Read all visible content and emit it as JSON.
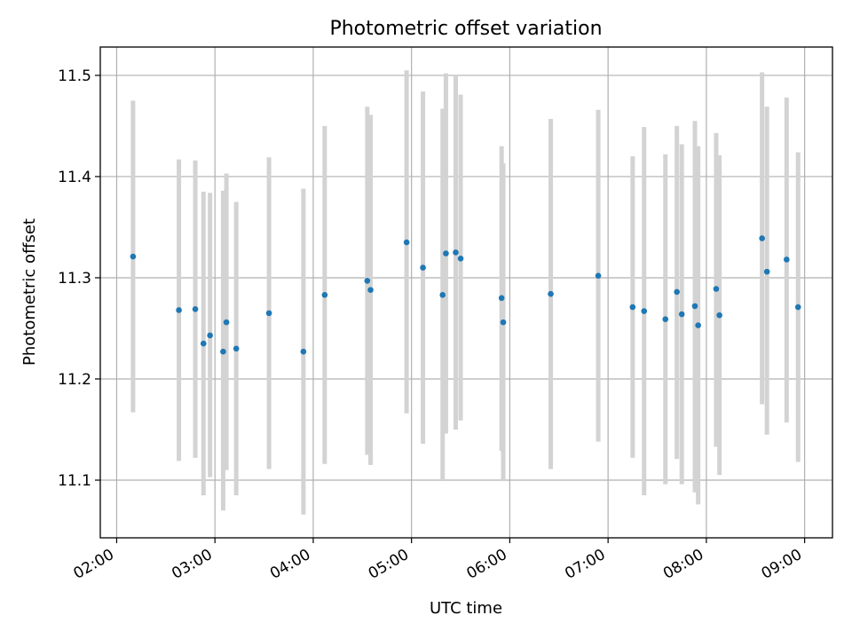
{
  "chart_data": {
    "type": "scatter",
    "title": "Photometric offset variation",
    "xlabel": "UTC time",
    "ylabel": "Photometric offset",
    "x_axis_type": "time",
    "xlim": [
      "01:50",
      "09:17"
    ],
    "ylim": [
      11.043,
      11.528
    ],
    "grid": true,
    "legend": "none",
    "x_ticks": [
      "02:00",
      "03:00",
      "04:00",
      "05:00",
      "06:00",
      "07:00",
      "08:00",
      "09:00"
    ],
    "y_ticks": [
      "11.1",
      "11.2",
      "11.3",
      "11.4",
      "11.5"
    ],
    "colors": {
      "point": "#1f77b4",
      "error_bar": "#d3d3d3"
    },
    "points": [
      {
        "t": "02:10",
        "y": 11.321,
        "lo": 11.167,
        "hi": 11.475
      },
      {
        "t": "02:38",
        "y": 11.268,
        "lo": 11.119,
        "hi": 11.417
      },
      {
        "t": "02:48",
        "y": 11.269,
        "lo": 11.122,
        "hi": 11.416
      },
      {
        "t": "02:53",
        "y": 11.235,
        "lo": 11.085,
        "hi": 11.385
      },
      {
        "t": "02:57",
        "y": 11.243,
        "lo": 11.103,
        "hi": 11.384
      },
      {
        "t": "03:05",
        "y": 11.227,
        "lo": 11.07,
        "hi": 11.386
      },
      {
        "t": "03:07",
        "y": 11.256,
        "lo": 11.11,
        "hi": 11.403
      },
      {
        "t": "03:13",
        "y": 11.23,
        "lo": 11.085,
        "hi": 11.375
      },
      {
        "t": "03:33",
        "y": 11.265,
        "lo": 11.111,
        "hi": 11.419
      },
      {
        "t": "03:54",
        "y": 11.227,
        "lo": 11.066,
        "hi": 11.388
      },
      {
        "t": "04:07",
        "y": 11.283,
        "lo": 11.116,
        "hi": 11.45
      },
      {
        "t": "04:33",
        "y": 11.297,
        "lo": 11.125,
        "hi": 11.469
      },
      {
        "t": "04:35",
        "y": 11.288,
        "lo": 11.115,
        "hi": 11.461
      },
      {
        "t": "04:57",
        "y": 11.335,
        "lo": 11.166,
        "hi": 11.505
      },
      {
        "t": "05:07",
        "y": 11.31,
        "lo": 11.136,
        "hi": 11.484
      },
      {
        "t": "05:19",
        "y": 11.283,
        "lo": 11.1,
        "hi": 11.467
      },
      {
        "t": "05:21",
        "y": 11.324,
        "lo": 11.146,
        "hi": 11.502
      },
      {
        "t": "05:27",
        "y": 11.325,
        "lo": 11.15,
        "hi": 11.5
      },
      {
        "t": "05:30",
        "y": 11.319,
        "lo": 11.159,
        "hi": 11.481
      },
      {
        "t": "05:55",
        "y": 11.28,
        "lo": 11.129,
        "hi": 11.43
      },
      {
        "t": "05:56",
        "y": 11.256,
        "lo": 11.099,
        "hi": 11.413
      },
      {
        "t": "06:25",
        "y": 11.284,
        "lo": 11.111,
        "hi": 11.457
      },
      {
        "t": "06:54",
        "y": 11.302,
        "lo": 11.138,
        "hi": 11.466
      },
      {
        "t": "07:15",
        "y": 11.271,
        "lo": 11.122,
        "hi": 11.42
      },
      {
        "t": "07:22",
        "y": 11.267,
        "lo": 11.085,
        "hi": 11.449
      },
      {
        "t": "07:35",
        "y": 11.259,
        "lo": 11.096,
        "hi": 11.422
      },
      {
        "t": "07:42",
        "y": 11.286,
        "lo": 11.121,
        "hi": 11.45
      },
      {
        "t": "07:45",
        "y": 11.264,
        "lo": 11.096,
        "hi": 11.432
      },
      {
        "t": "07:53",
        "y": 11.272,
        "lo": 11.088,
        "hi": 11.455
      },
      {
        "t": "07:55",
        "y": 11.253,
        "lo": 11.076,
        "hi": 11.43
      },
      {
        "t": "08:06",
        "y": 11.289,
        "lo": 11.133,
        "hi": 11.443
      },
      {
        "t": "08:08",
        "y": 11.263,
        "lo": 11.105,
        "hi": 11.421
      },
      {
        "t": "08:34",
        "y": 11.339,
        "lo": 11.175,
        "hi": 11.503
      },
      {
        "t": "08:37",
        "y": 11.306,
        "lo": 11.145,
        "hi": 11.469
      },
      {
        "t": "08:49",
        "y": 11.318,
        "lo": 11.157,
        "hi": 11.478
      },
      {
        "t": "08:56",
        "y": 11.271,
        "lo": 11.118,
        "hi": 11.424
      }
    ]
  }
}
